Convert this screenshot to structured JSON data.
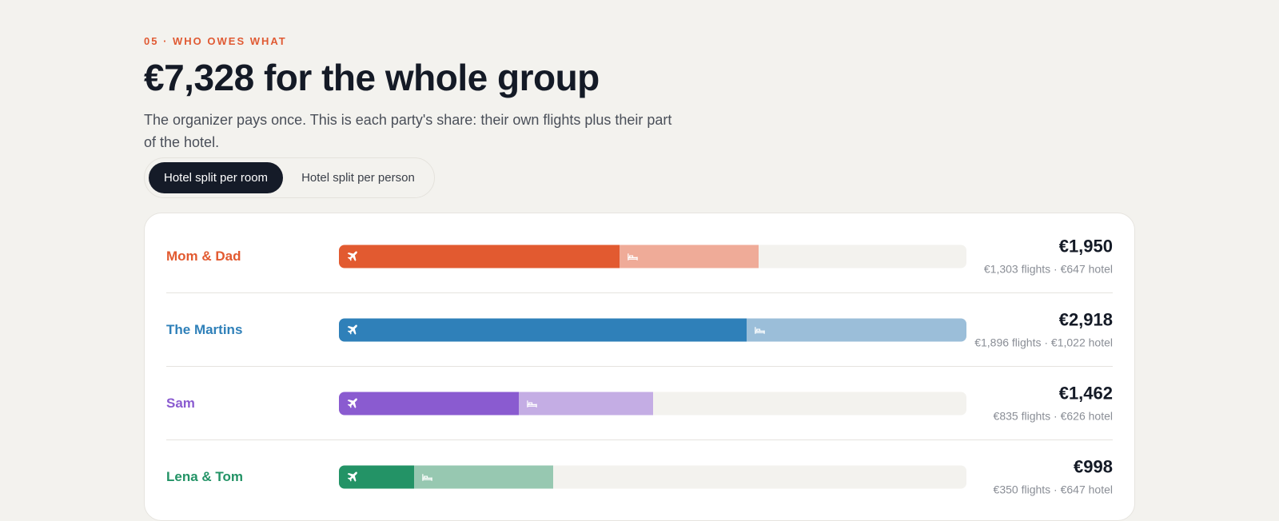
{
  "header": {
    "eyebrow": "05 · WHO OWES WHAT",
    "title": "€7,328 for the whole group",
    "subtitle": "The organizer pays once. This is each party's share: their own flights plus their part of the hotel."
  },
  "toggle": {
    "options": [
      {
        "label": "Hotel split per room",
        "active": true
      },
      {
        "label": "Hotel split per person",
        "active": false
      }
    ]
  },
  "bar_scale_max": 2918,
  "parties": [
    {
      "name": "Mom & Dad",
      "color": "#e25a30",
      "light_color": "#efab98",
      "flights": 1303,
      "hotel": 647,
      "total_label": "€1,950",
      "breakdown_label": "€1,303 flights · €647 hotel"
    },
    {
      "name": "The Martins",
      "color": "#2f80b9",
      "light_color": "#9bbed9",
      "flights": 1896,
      "hotel": 1022,
      "total_label": "€2,918",
      "breakdown_label": "€1,896 flights · €1,022 hotel"
    },
    {
      "name": "Sam",
      "color": "#8a5bd0",
      "light_color": "#c4ade4",
      "flights": 835,
      "hotel": 626,
      "total_label": "€1,462",
      "breakdown_label": "€835 flights · €626 hotel"
    },
    {
      "name": "Lena & Tom",
      "color": "#239366",
      "light_color": "#97c8b1",
      "flights": 350,
      "hotel": 647,
      "total_label": "€998",
      "breakdown_label": "€350 flights · €647 hotel"
    }
  ],
  "icons": {
    "flights": "plane-icon",
    "hotel": "bed-icon"
  }
}
